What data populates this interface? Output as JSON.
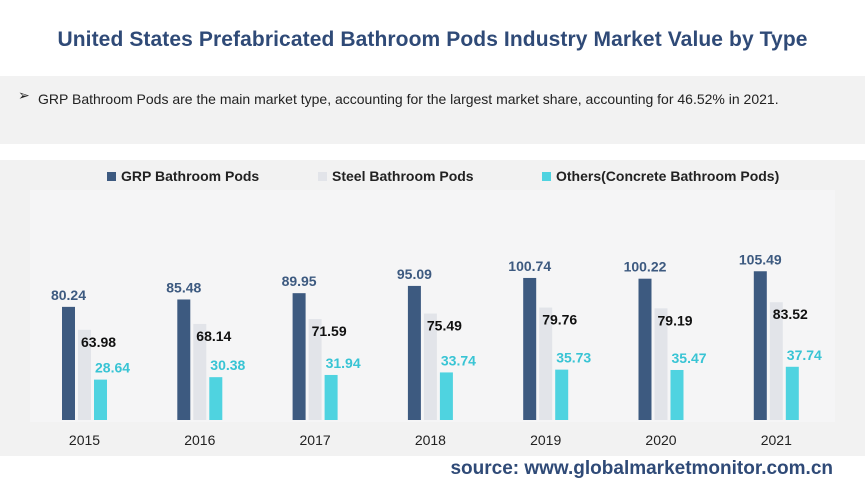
{
  "title": "United States Prefabricated Bathroom Pods Industry Market Value by Type",
  "note": {
    "bullet_icon": "arrow-bullet-icon",
    "text": "GRP Bathroom Pods are the main market type, accounting for the largest market share, accounting for 46.52% in 2021."
  },
  "source": "source: www.globalmarketmonitor.com.cn",
  "colors": {
    "grp": "#3d5a80",
    "steel": "#e2e4e9",
    "others": "#4fd3e0",
    "grp_label": "#3d5a80",
    "steel_label": "#111111",
    "others_label": "#38c4d4",
    "title": "#2f4a77",
    "panel": "#f2f2f2"
  },
  "chart_data": {
    "type": "bar",
    "categories": [
      "2015",
      "2016",
      "2017",
      "2018",
      "2019",
      "2020",
      "2021"
    ],
    "series": [
      {
        "name": "GRP Bathroom Pods",
        "values": [
          80.24,
          85.48,
          89.95,
          95.09,
          100.74,
          100.22,
          105.49
        ]
      },
      {
        "name": "Steel Bathroom Pods",
        "values": [
          63.98,
          68.14,
          71.59,
          75.49,
          79.76,
          79.19,
          83.52
        ]
      },
      {
        "name": "Others(Concrete Bathroom Pods)",
        "values": [
          28.64,
          30.38,
          31.94,
          33.74,
          35.73,
          35.47,
          37.74
        ]
      }
    ],
    "legend_position": "top",
    "data_labels": true,
    "grid": false,
    "ylim": [
      0,
      115
    ]
  }
}
